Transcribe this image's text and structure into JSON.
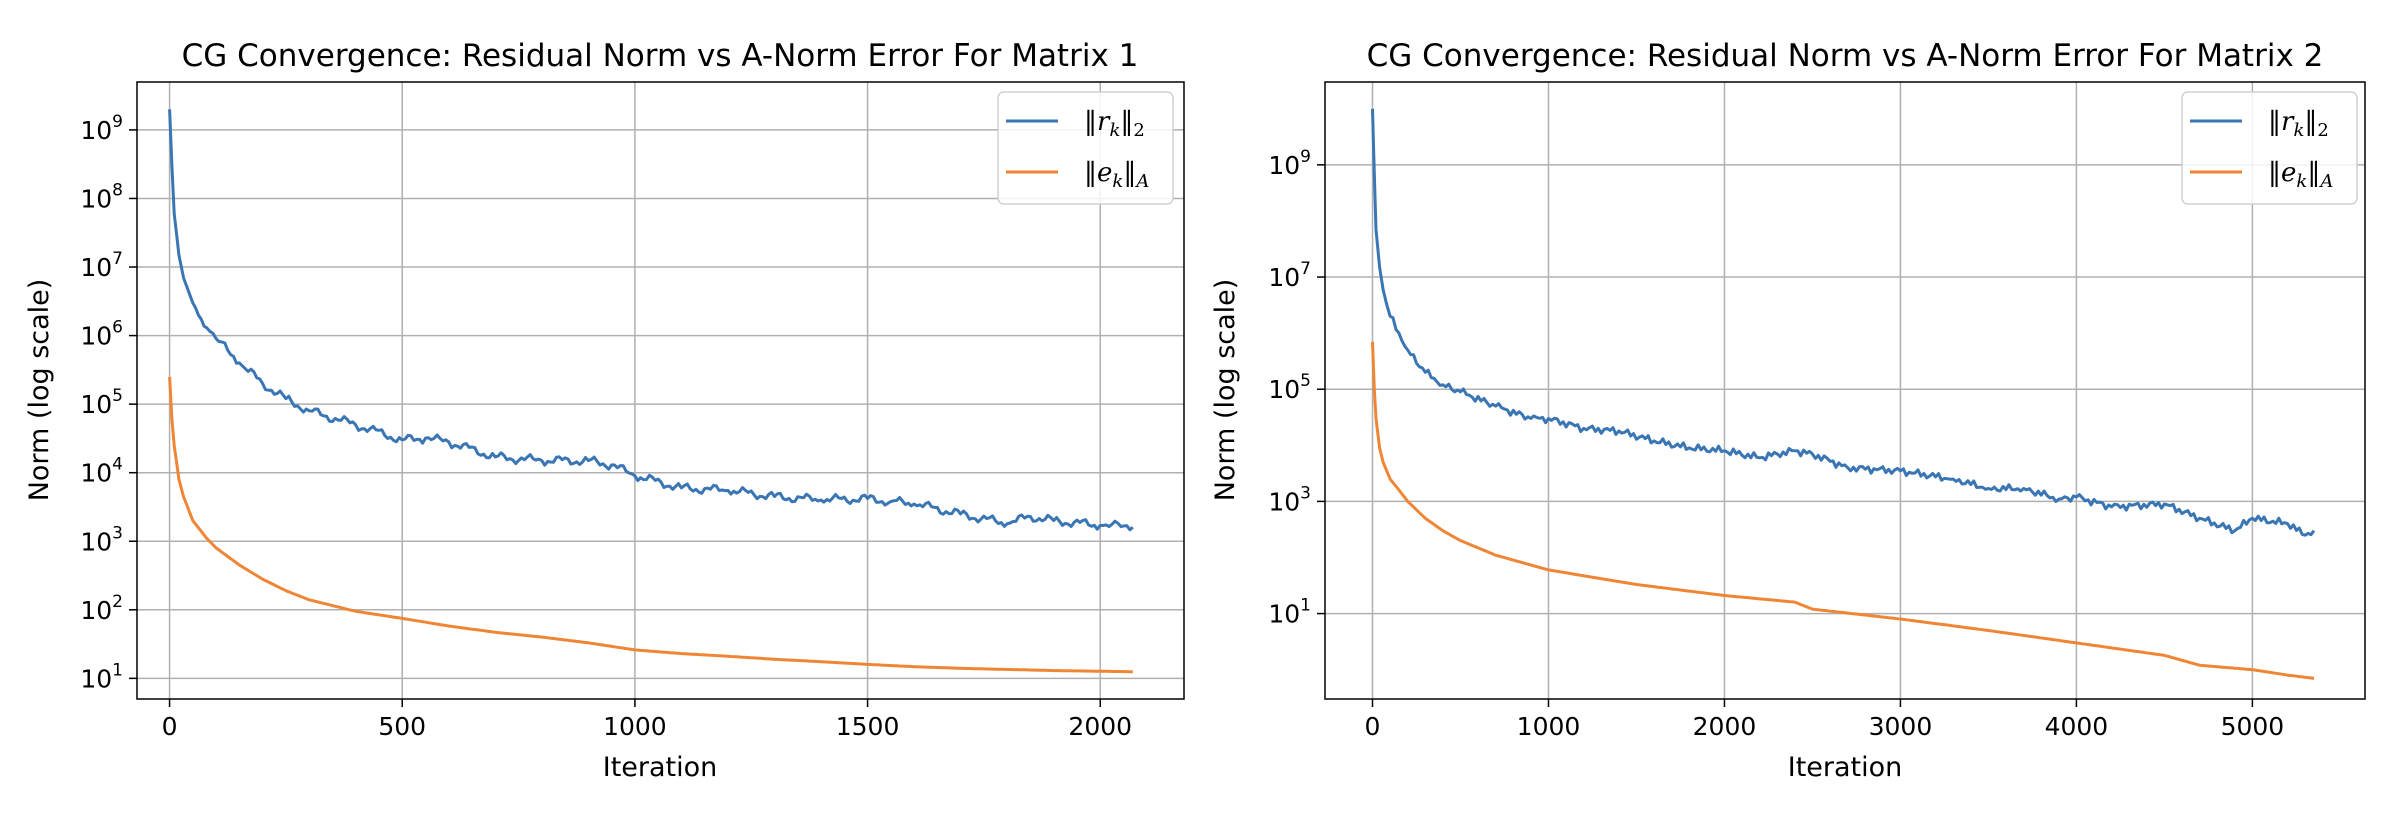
{
  "charts": [
    {
      "title": "CG Convergence: Residual Norm vs A-Norm Error For Matrix 1",
      "xlabel": "Iteration",
      "ylabel": "Norm (log scale)",
      "legend": [
        "‖r_k‖_2",
        "‖e_k‖_A"
      ]
    },
    {
      "title": "CG Convergence: Residual Norm vs A-Norm Error For Matrix 2",
      "xlabel": "Iteration",
      "ylabel": "Norm (log scale)",
      "legend": [
        "‖r_k‖_2",
        "‖e_k‖_A"
      ]
    }
  ],
  "chart_data": [
    {
      "type": "line",
      "title": "CG Convergence: Residual Norm vs A-Norm Error For Matrix 1",
      "xlabel": "Iteration",
      "ylabel": "Norm (log scale)",
      "yscale": "log",
      "grid": true,
      "legend_position": "top-right",
      "xlim": [
        -70,
        2180
      ],
      "ylim": [
        5,
        5000000000.0
      ],
      "xticks": [
        0,
        500,
        1000,
        1500,
        2000
      ],
      "yticks_exponents": [
        1,
        2,
        3,
        4,
        5,
        6,
        7,
        8,
        9
      ],
      "series": [
        {
          "name": "‖r_k‖_2",
          "color": "#3a76b4",
          "x": [
            0,
            5,
            10,
            20,
            30,
            50,
            80,
            100,
            150,
            200,
            250,
            300,
            400,
            500,
            550,
            600,
            700,
            800,
            900,
            950,
            1000,
            1100,
            1200,
            1300,
            1400,
            1500,
            1550,
            1600,
            1700,
            1800,
            1850,
            1900,
            2000,
            2070
          ],
          "y": [
            2000000000,
            300000000,
            60000000,
            15000000,
            7000000,
            3000000,
            1300000,
            900000,
            400000,
            200000,
            120000,
            80000,
            50000,
            30000,
            32000,
            28000,
            17000,
            15000,
            15000,
            13000,
            9000,
            6000,
            5500,
            4500,
            4000,
            4200,
            3800,
            3500,
            2500,
            1800,
            2300,
            2000,
            1700,
            1600
          ]
        },
        {
          "name": "‖e_k‖_A",
          "color": "#ef8636",
          "x": [
            0,
            5,
            10,
            20,
            30,
            50,
            80,
            100,
            150,
            200,
            250,
            300,
            400,
            500,
            600,
            700,
            800,
            900,
            1000,
            1100,
            1200,
            1300,
            1400,
            1500,
            1600,
            1700,
            1800,
            1900,
            2000,
            2070
          ],
          "y": [
            250000,
            60000,
            25000,
            8000,
            4500,
            2000,
            1100,
            800,
            450,
            280,
            190,
            140,
            95,
            75,
            58,
            47,
            40,
            33,
            26,
            23,
            21,
            19,
            17.5,
            16,
            14.8,
            14,
            13.5,
            13,
            12.7,
            12.5
          ]
        }
      ]
    },
    {
      "type": "line",
      "title": "CG Convergence: Residual Norm vs A-Norm Error For Matrix 2",
      "xlabel": "Iteration",
      "ylabel": "Norm (log scale)",
      "yscale": "log",
      "grid": true,
      "legend_position": "top-right",
      "xlim": [
        -270,
        5640
      ],
      "ylim": [
        0.3,
        30000000000.0
      ],
      "xticks": [
        0,
        1000,
        2000,
        3000,
        4000,
        5000
      ],
      "yticks_exponents": [
        1,
        3,
        5,
        7,
        9
      ],
      "series": [
        {
          "name": "‖r_k‖_2",
          "color": "#3a76b4",
          "x": [
            0,
            10,
            20,
            40,
            60,
            100,
            150,
            200,
            300,
            400,
            500,
            700,
            900,
            1000,
            1200,
            1400,
            1600,
            1800,
            2000,
            2200,
            2300,
            2400,
            2500,
            2700,
            3000,
            3300,
            3500,
            3700,
            3900,
            4000,
            4200,
            4500,
            4700,
            4900,
            5000,
            5200,
            5300,
            5350
          ],
          "y": [
            10000000000,
            700000000,
            70000000,
            15000000,
            6000000,
            2000000,
            1000000,
            500000,
            200000,
            120000,
            90000,
            50000,
            30000,
            30000,
            20000,
            18000,
            12000,
            9000,
            8000,
            6000,
            7000,
            8000,
            7000,
            4000,
            3500,
            2500,
            1700,
            1700,
            1100,
            1200,
            800,
            900,
            500,
            300,
            500,
            400,
            250,
            300
          ]
        },
        {
          "name": "‖e_k‖_A",
          "color": "#ef8636",
          "x": [
            0,
            10,
            20,
            40,
            60,
            100,
            150,
            200,
            300,
            400,
            500,
            700,
            1000,
            1500,
            2000,
            2400,
            2500,
            3000,
            3500,
            4000,
            4500,
            4700,
            5000,
            5200,
            5350
          ],
          "y": [
            700000,
            100000,
            30000,
            9000,
            5000,
            2500,
            1600,
            1000,
            500,
            300,
            200,
            110,
            60,
            33,
            21,
            16,
            12,
            8,
            5,
            3,
            1.8,
            1.2,
            1.0,
            0.8,
            0.7
          ]
        }
      ]
    }
  ]
}
